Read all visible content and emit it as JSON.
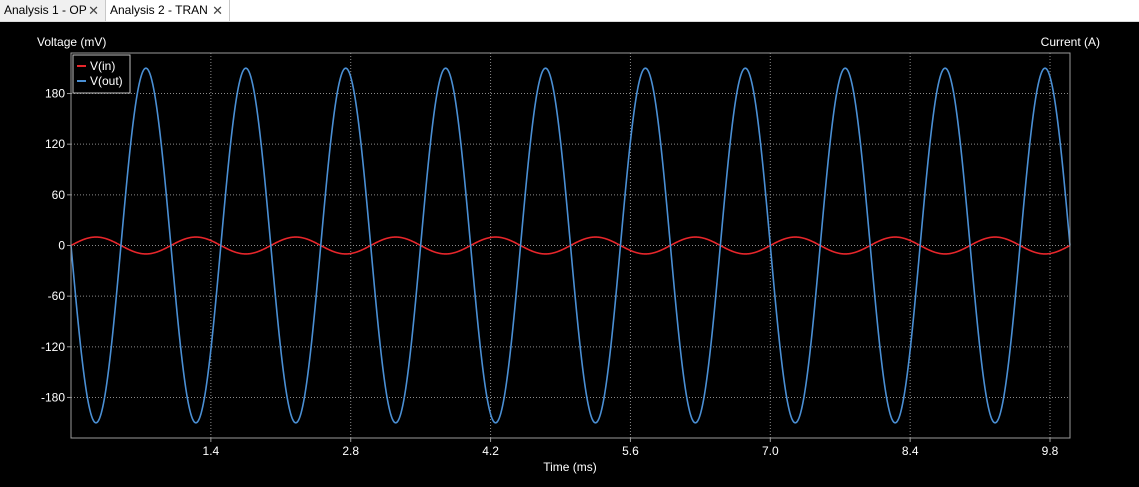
{
  "tabs": [
    {
      "label": "Analysis 1 - OP",
      "close": "✕",
      "active": false
    },
    {
      "label": "Analysis 2 - TRAN",
      "close": "✕",
      "active": true
    }
  ],
  "colors": {
    "background": "#000000",
    "grid": "#8a8a8a",
    "axis_text": "#ffffff"
  },
  "chart_data": {
    "type": "line",
    "xlabel": "Time (ms)",
    "ylabel_left": "Voltage (mV)",
    "ylabel_right": "Current (A)",
    "xlim": [
      0,
      10
    ],
    "ylim": [
      -228,
      228
    ],
    "x_ticks": [
      1.4,
      2.8,
      4.2,
      5.6,
      7.0,
      8.4,
      9.8
    ],
    "x_tick_labels": [
      "1.4",
      "2.8",
      "4.2",
      "5.6",
      "7.0",
      "8.4",
      "9.8"
    ],
    "y_ticks": [
      180,
      120,
      60,
      0,
      -60,
      -120,
      -180
    ],
    "y_tick_labels": [
      "180",
      "120",
      "60",
      "0",
      "-60",
      "-120",
      "-180"
    ],
    "grid": true,
    "legend_position": "top-left",
    "series": [
      {
        "name": "V(in)",
        "color": "#e8262b",
        "waveform": "sine",
        "amplitude": 10,
        "frequency_khz": 1.0,
        "phase_deg": 0
      },
      {
        "name": "V(out)",
        "color": "#4a8fd4",
        "waveform": "sine",
        "amplitude": 210,
        "frequency_khz": 1.0,
        "phase_deg": 180
      }
    ]
  }
}
